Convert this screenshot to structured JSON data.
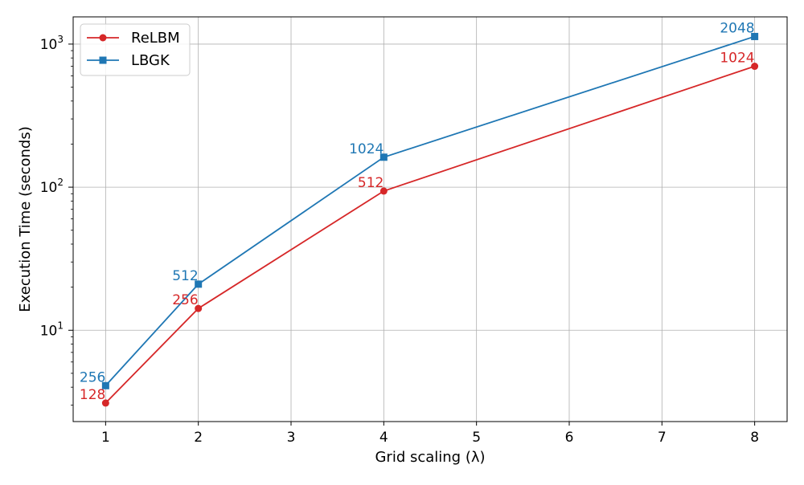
{
  "chart_data": {
    "type": "line",
    "title": "",
    "xlabel": "Grid scaling (λ)",
    "ylabel": "Execution Time (seconds)",
    "x_scale": "linear",
    "y_scale": "log",
    "xlim": [
      0.65,
      8.35
    ],
    "ylim": [
      2.3,
      1550
    ],
    "x_ticks": [
      1,
      2,
      3,
      4,
      5,
      6,
      7,
      8
    ],
    "x_tick_labels": [
      "1",
      "2",
      "3",
      "4",
      "5",
      "6",
      "7",
      "8"
    ],
    "y_ticks": [
      10,
      100,
      1000
    ],
    "y_tick_labels": [
      {
        "base": "10",
        "exp": "1"
      },
      {
        "base": "10",
        "exp": "2"
      },
      {
        "base": "10",
        "exp": "3"
      }
    ],
    "grid": true,
    "legend_position": "top-left",
    "series": [
      {
        "name": "ReLBM",
        "color": "#d62728",
        "marker": "circle",
        "x": [
          1,
          2,
          4,
          8
        ],
        "values": [
          3.1,
          14.2,
          94,
          700
        ],
        "point_labels": [
          "128",
          "256",
          "512",
          "1024"
        ]
      },
      {
        "name": "LBGK",
        "color": "#1f77b4",
        "marker": "square",
        "x": [
          1,
          2,
          4,
          8
        ],
        "values": [
          4.1,
          21,
          162,
          1130
        ],
        "point_labels": [
          "256",
          "512",
          "1024",
          "2048"
        ]
      }
    ]
  }
}
